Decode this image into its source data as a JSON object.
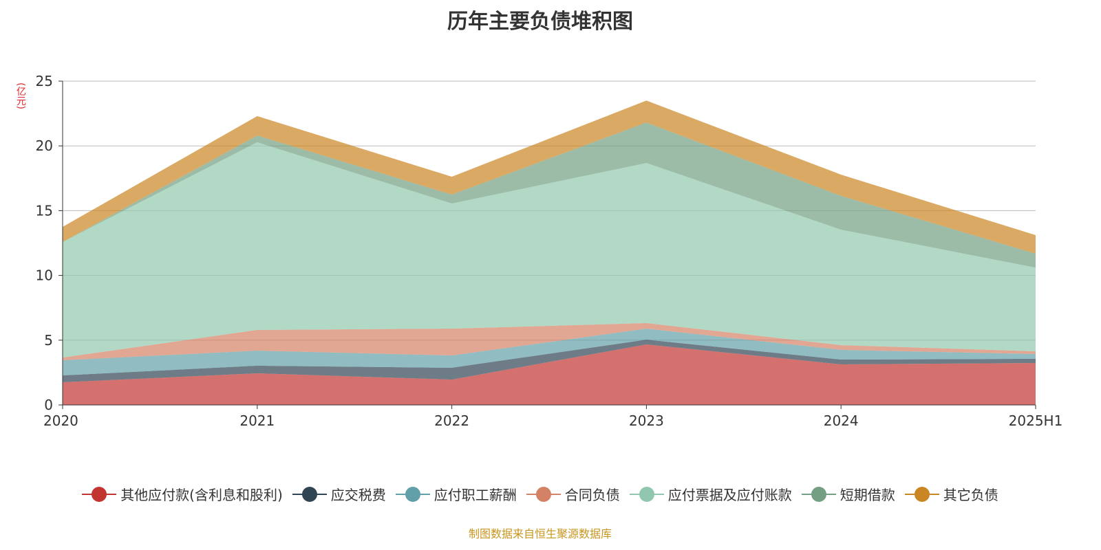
{
  "title": "历年主要负债堆积图",
  "source": "制图数据来自恒生聚源数据库",
  "chart_data": {
    "type": "area",
    "stacked": true,
    "title": "历年主要负债堆积图",
    "ylabel": "(亿元)",
    "xlabel": "",
    "categories": [
      "2020",
      "2021",
      "2022",
      "2023",
      "2024",
      "2025H1"
    ],
    "ylim": [
      0,
      25
    ],
    "yticks": [
      0,
      5,
      10,
      15,
      20,
      25
    ],
    "grid": true,
    "legend_position": "bottom",
    "series": [
      {
        "name": "其他应付款(含利息和股利)",
        "color": "#c23531",
        "values": [
          1.75,
          2.44,
          1.96,
          4.67,
          3.13,
          3.24
        ]
      },
      {
        "name": "应交税费",
        "color": "#2f4554",
        "values": [
          0.53,
          0.59,
          0.91,
          0.37,
          0.37,
          0.32
        ]
      },
      {
        "name": "应付职工薪酬",
        "color": "#61a0a8",
        "values": [
          1.17,
          1.16,
          0.95,
          0.85,
          0.75,
          0.37
        ]
      },
      {
        "name": "合同负债",
        "color": "#d48265",
        "values": [
          0.21,
          1.6,
          2.07,
          0.43,
          0.37,
          0.21
        ]
      },
      {
        "name": "应付票据及应付账款",
        "color": "#91c7ae",
        "values": [
          8.92,
          14.49,
          9.66,
          12.36,
          8.91,
          6.46
        ]
      },
      {
        "name": "短期借款",
        "color": "#749f83",
        "values": [
          0,
          0.52,
          0.69,
          3.12,
          2.61,
          1.08
        ]
      },
      {
        "name": "其它负债",
        "color": "#ca8622",
        "values": [
          1.17,
          1.5,
          1.38,
          1.7,
          1.64,
          1.43
        ]
      }
    ]
  }
}
